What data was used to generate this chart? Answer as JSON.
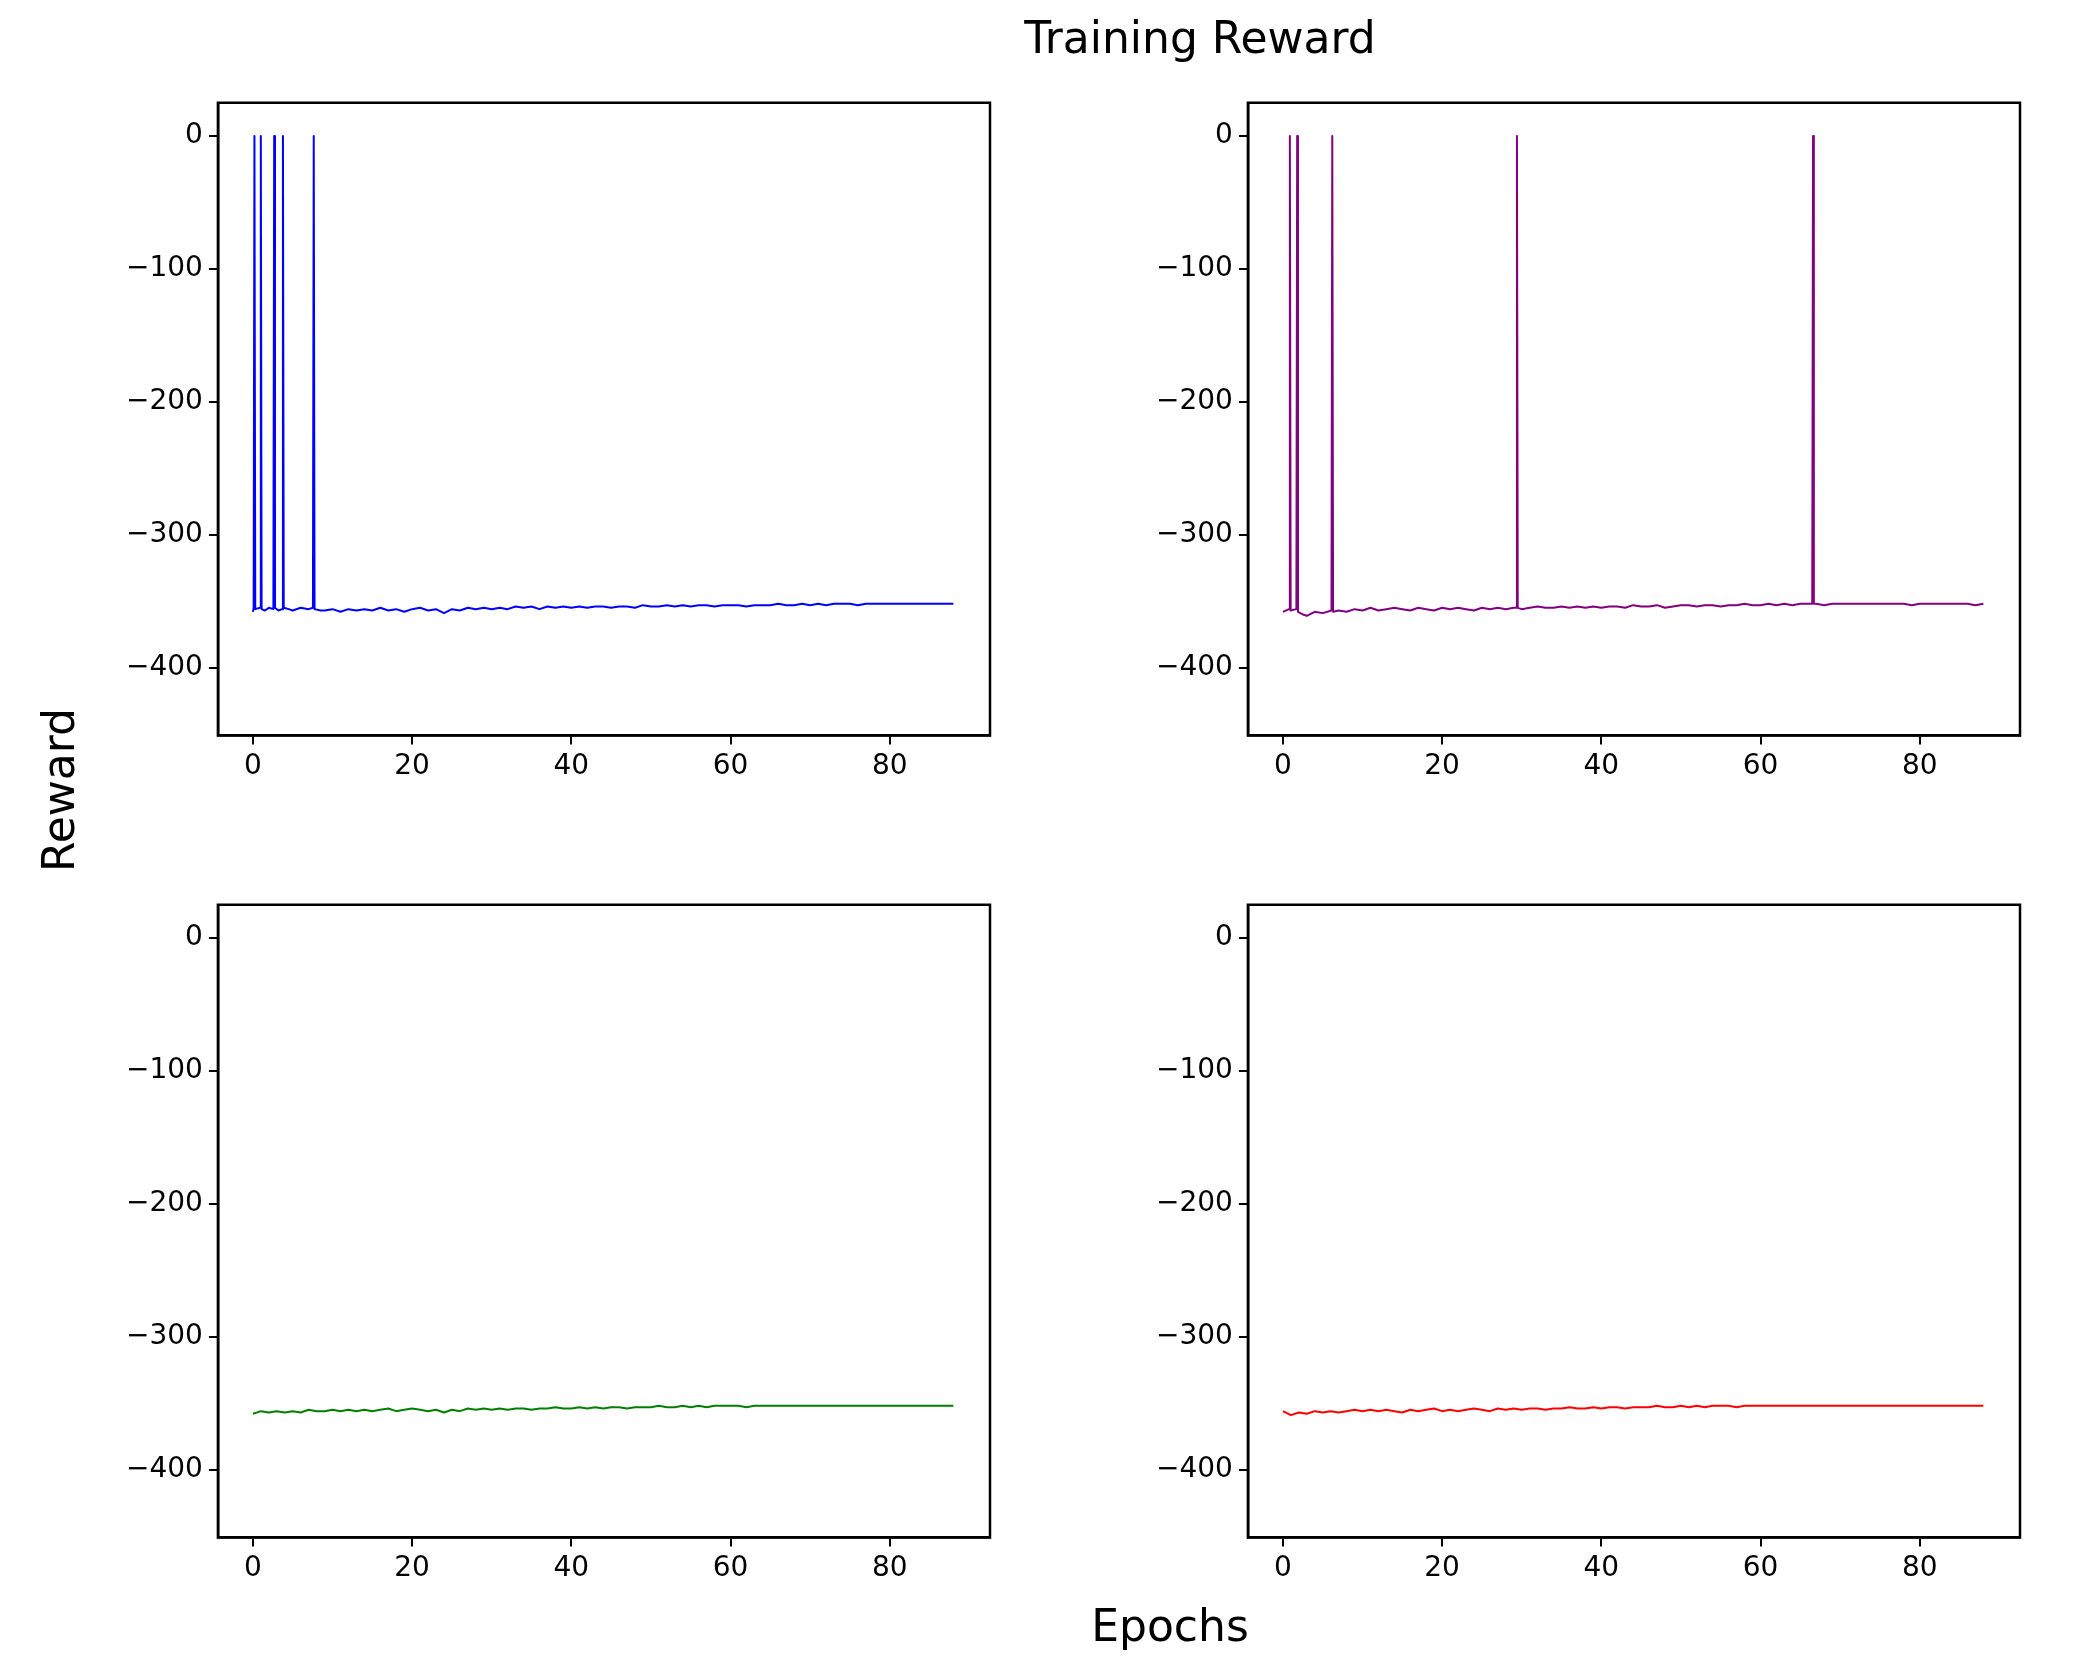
{
  "chart_data": [
    {
      "type": "line",
      "ylabel": "Reward",
      "xlim": [
        -4.4,
        92.6
      ],
      "ylim": [
        -451,
        25
      ],
      "xticks": [
        0,
        20,
        40,
        60,
        80
      ],
      "yticks": [
        0,
        -100,
        -200,
        -300,
        -400
      ],
      "marker": "none",
      "line_style": "solid",
      "series": [
        {
          "color": "#0000ff",
          "x": [
            0,
            0.09,
            0.19,
            0.29,
            0.89,
            0.99,
            1.09,
            1.5,
            2,
            2.57,
            2.67,
            2.77,
            3.2,
            3.67,
            3.77,
            3.87,
            4.5,
            5,
            6,
            7,
            7.54,
            7.64,
            7.74,
            8.5,
            9,
            10,
            11,
            12,
            13,
            14,
            15,
            16,
            17,
            18,
            19,
            20,
            21,
            22,
            23,
            24,
            25,
            26,
            27,
            28,
            29,
            30,
            31,
            32,
            33,
            34,
            35,
            36,
            37,
            38,
            39,
            40,
            41,
            42,
            43,
            44,
            45,
            46,
            47,
            48,
            49,
            50,
            51,
            52,
            53,
            54,
            55,
            56,
            57,
            58,
            59,
            60,
            61,
            62,
            63,
            64,
            65,
            66,
            67,
            68,
            69,
            70,
            71,
            72,
            73,
            74,
            75,
            76,
            77,
            78,
            79,
            80,
            81,
            82,
            83,
            84,
            85,
            86,
            87,
            88
          ],
          "values": [
            -358,
            -355,
            0,
            -356,
            -355,
            0,
            -356,
            -357,
            -355,
            -356,
            0,
            -355,
            -357,
            -356,
            0,
            -355,
            -356,
            -357,
            -355,
            -356,
            -355,
            0,
            -356,
            -357,
            -357,
            -356,
            -358,
            -356,
            -357,
            -356,
            -357,
            -355,
            -357,
            -356,
            -358,
            -356,
            -355,
            -357,
            -356,
            -359,
            -356,
            -357,
            -355,
            -356,
            -355,
            -356,
            -355,
            -356,
            -354,
            -355,
            -354,
            -356,
            -354,
            -355,
            -354,
            -355,
            -354,
            -355,
            -354,
            -354,
            -355,
            -354,
            -354,
            -355,
            -353,
            -354,
            -354,
            -353,
            -354,
            -353,
            -354,
            -353,
            -353,
            -354,
            -353,
            -353,
            -353,
            -354,
            -353,
            -353,
            -353,
            -352,
            -353,
            -353,
            -352,
            -353,
            -352,
            -353,
            -352,
            -352,
            -352,
            -353,
            -352,
            -352,
            -352,
            -352,
            -352,
            -352,
            -352,
            -352,
            -352,
            -352,
            -352,
            -352
          ]
        }
      ]
    },
    {
      "type": "line",
      "title": "Training Reward",
      "xlim": [
        -4.4,
        92.6
      ],
      "ylim": [
        -451,
        25
      ],
      "xticks": [
        0,
        20,
        40,
        60,
        80
      ],
      "yticks": [
        0,
        -100,
        -200,
        -300,
        -400
      ],
      "marker": "none",
      "line_style": "solid",
      "series": [
        {
          "color": "#800080",
          "x": [
            0,
            0.77,
            0.87,
            0.97,
            1.69,
            1.79,
            1.89,
            2.5,
            3,
            4,
            5,
            6.1,
            6.2,
            6.3,
            7,
            8,
            9,
            10,
            11,
            12,
            13,
            14,
            15,
            16,
            17,
            18,
            19,
            20,
            21,
            22,
            23,
            24,
            25,
            26,
            27,
            28,
            29,
            29.3,
            29.4,
            29.5,
            30,
            31,
            32,
            33,
            34,
            35,
            36,
            37,
            38,
            39,
            40,
            41,
            42,
            43,
            44,
            45,
            46,
            47,
            48,
            49,
            50,
            51,
            52,
            53,
            54,
            55,
            56,
            57,
            58,
            59,
            60,
            61,
            62,
            63,
            64,
            65,
            66,
            66.5,
            66.6,
            66.7,
            67,
            68,
            69,
            70,
            71,
            72,
            73,
            74,
            75,
            76,
            77,
            78,
            79,
            80,
            81,
            82,
            83,
            84,
            85,
            86,
            87,
            88
          ],
          "values": [
            -358,
            -356,
            0,
            -357,
            -356,
            0,
            -358,
            -360,
            -361,
            -358,
            -359,
            -357,
            0,
            -358,
            -357,
            -358,
            -356,
            -357,
            -355,
            -357,
            -356,
            -355,
            -356,
            -357,
            -355,
            -356,
            -357,
            -355,
            -356,
            -355,
            -356,
            -357,
            -355,
            -356,
            -355,
            -356,
            -355,
            -355,
            0,
            -355,
            -356,
            -355,
            -354,
            -355,
            -355,
            -354,
            -355,
            -354,
            -355,
            -354,
            -355,
            -354,
            -354,
            -355,
            -353,
            -354,
            -354,
            -353,
            -355,
            -354,
            -353,
            -353,
            -354,
            -353,
            -353,
            -354,
            -353,
            -353,
            -352,
            -353,
            -353,
            -352,
            -353,
            -352,
            -353,
            -352,
            -352,
            -352,
            0,
            -352,
            -352,
            -353,
            -352,
            -352,
            -352,
            -352,
            -352,
            -352,
            -352,
            -352,
            -352,
            -352,
            -353,
            -352,
            -352,
            -352,
            -352,
            -352,
            -352,
            -352,
            -353,
            -352
          ]
        }
      ]
    },
    {
      "type": "line",
      "xlabel": "Epochs",
      "xlim": [
        -4.4,
        92.6
      ],
      "ylim": [
        -451,
        25
      ],
      "xticks": [
        0,
        20,
        40,
        60,
        80
      ],
      "yticks": [
        0,
        -100,
        -200,
        -300,
        -400
      ],
      "marker": "none",
      "line_style": "solid",
      "series": [
        {
          "color": "#008000",
          "x": [
            0,
            1,
            2,
            3,
            4,
            5,
            6,
            7,
            8,
            9,
            10,
            11,
            12,
            13,
            14,
            15,
            16,
            17,
            18,
            19,
            20,
            21,
            22,
            23,
            24,
            25,
            26,
            27,
            28,
            29,
            30,
            31,
            32,
            33,
            34,
            35,
            36,
            37,
            38,
            39,
            40,
            41,
            42,
            43,
            44,
            45,
            46,
            47,
            48,
            49,
            50,
            51,
            52,
            53,
            54,
            55,
            56,
            57,
            58,
            59,
            60,
            61,
            62,
            63,
            64,
            65,
            66,
            67,
            68,
            69,
            70,
            71,
            72,
            73,
            74,
            75,
            76,
            77,
            78,
            79,
            80,
            81,
            82,
            83,
            84,
            85,
            86,
            87,
            88
          ],
          "values": [
            -358,
            -356,
            -357,
            -356,
            -357,
            -356,
            -357,
            -355,
            -356,
            -356,
            -355,
            -356,
            -355,
            -356,
            -355,
            -356,
            -355,
            -354,
            -356,
            -355,
            -354,
            -355,
            -356,
            -355,
            -357,
            -355,
            -356,
            -354,
            -355,
            -354,
            -355,
            -354,
            -355,
            -354,
            -354,
            -355,
            -354,
            -354,
            -353,
            -354,
            -354,
            -353,
            -354,
            -353,
            -354,
            -353,
            -353,
            -354,
            -353,
            -353,
            -353,
            -352,
            -353,
            -353,
            -352,
            -353,
            -352,
            -353,
            -352,
            -352,
            -352,
            -352,
            -353,
            -352,
            -352,
            -352,
            -352,
            -352,
            -352,
            -352,
            -352,
            -352,
            -352,
            -352,
            -352,
            -352,
            -352,
            -352,
            -352,
            -352,
            -352,
            -352,
            -352,
            -352,
            -352,
            -352,
            -352,
            -352,
            -352
          ]
        }
      ]
    },
    {
      "type": "line",
      "xlim": [
        -4.4,
        92.6
      ],
      "ylim": [
        -451,
        25
      ],
      "xticks": [
        0,
        20,
        40,
        60,
        80
      ],
      "yticks": [
        0,
        -100,
        -200,
        -300,
        -400
      ],
      "marker": "none",
      "line_style": "solid",
      "series": [
        {
          "color": "#ff0000",
          "x": [
            0,
            1,
            2,
            3,
            4,
            5,
            6,
            7,
            8,
            9,
            10,
            11,
            12,
            13,
            14,
            15,
            16,
            17,
            18,
            19,
            20,
            21,
            22,
            23,
            24,
            25,
            26,
            27,
            28,
            29,
            30,
            31,
            32,
            33,
            34,
            35,
            36,
            37,
            38,
            39,
            40,
            41,
            42,
            43,
            44,
            45,
            46,
            47,
            48,
            49,
            50,
            51,
            52,
            53,
            54,
            55,
            56,
            57,
            58,
            59,
            60,
            61,
            62,
            63,
            64,
            65,
            66,
            67,
            68,
            69,
            70,
            71,
            72,
            73,
            74,
            75,
            76,
            77,
            78,
            79,
            80,
            81,
            82,
            83,
            84,
            85,
            86,
            87,
            88
          ],
          "values": [
            -356,
            -359,
            -357,
            -358,
            -356,
            -357,
            -356,
            -357,
            -356,
            -355,
            -356,
            -355,
            -356,
            -355,
            -356,
            -357,
            -355,
            -356,
            -355,
            -354,
            -356,
            -355,
            -356,
            -355,
            -354,
            -355,
            -356,
            -354,
            -355,
            -354,
            -355,
            -354,
            -354,
            -355,
            -354,
            -354,
            -353,
            -354,
            -354,
            -353,
            -354,
            -353,
            -353,
            -354,
            -353,
            -353,
            -353,
            -352,
            -353,
            -353,
            -352,
            -353,
            -352,
            -353,
            -352,
            -352,
            -352,
            -353,
            -352,
            -352,
            -352,
            -352,
            -352,
            -352,
            -352,
            -352,
            -352,
            -352,
            -352,
            -352,
            -352,
            -352,
            -352,
            -352,
            -352,
            -352,
            -352,
            -352,
            -352,
            -352,
            -352,
            -352,
            -352,
            -352,
            -352,
            -352,
            -352,
            -352,
            -352
          ]
        }
      ]
    }
  ]
}
